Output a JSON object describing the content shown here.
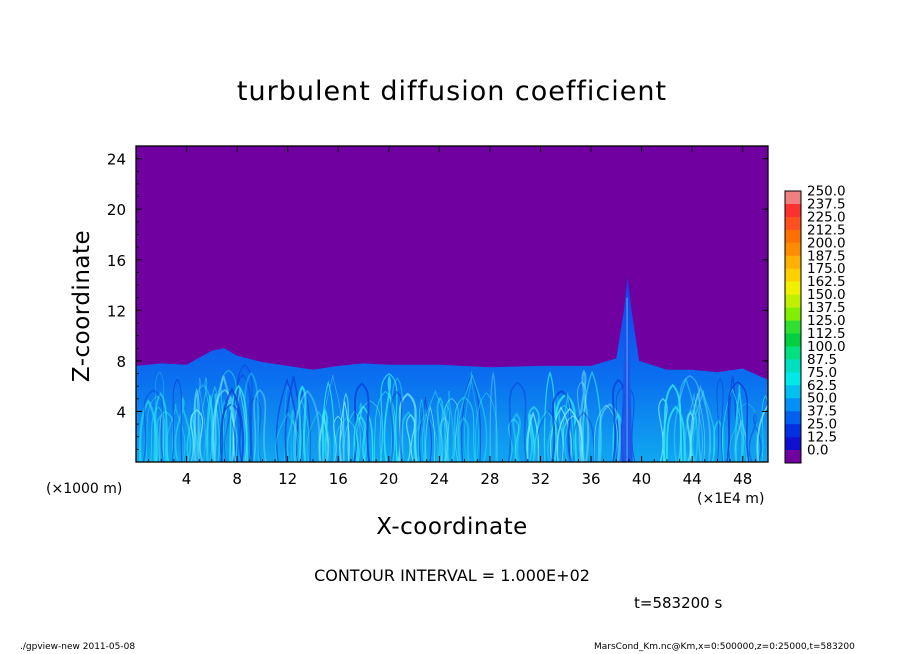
{
  "chart_data": {
    "type": "heatmap",
    "title": "turbulent diffusion coefficient",
    "xlabel": "X-coordinate",
    "ylabel": "Z-coordinate",
    "x_unit_note": "(×1000 m)",
    "x_unit_note_right": "(×1E4 m)",
    "xlim": [
      0,
      50
    ],
    "ylim": [
      0,
      25
    ],
    "xticks": [
      "4",
      "8",
      "12",
      "16",
      "20",
      "24",
      "28",
      "32",
      "36",
      "40",
      "44",
      "48"
    ],
    "xtick_values": [
      4,
      8,
      12,
      16,
      20,
      24,
      28,
      32,
      36,
      40,
      44,
      48
    ],
    "yticks": [
      "4",
      "8",
      "12",
      "16",
      "20",
      "24"
    ],
    "ytick_values": [
      4,
      8,
      12,
      16,
      20,
      24
    ],
    "colorbar": {
      "labels": [
        "250.0",
        "237.5",
        "225.0",
        "212.5",
        "200.0",
        "187.5",
        "175.0",
        "162.5",
        "150.0",
        "137.5",
        "125.0",
        "112.5",
        "100.0",
        "87.5",
        "75.0",
        "62.5",
        "50.0",
        "37.5",
        "25.0",
        "12.5",
        "0.0"
      ],
      "colors": [
        "#f08080",
        "#ff3030",
        "#ff5020",
        "#ff7000",
        "#ff8c00",
        "#ffb000",
        "#ffd000",
        "#f0f000",
        "#c0f000",
        "#80f000",
        "#30e030",
        "#00d040",
        "#00e080",
        "#00e0c0",
        "#00e8e8",
        "#00c0f0",
        "#0090f8",
        "#0060f0",
        "#0030e0",
        "#1010d0",
        "#7000a0"
      ]
    },
    "layer_top_profile": [
      [
        0,
        7.6
      ],
      [
        2,
        7.8
      ],
      [
        4,
        7.7
      ],
      [
        6,
        8.8
      ],
      [
        7,
        9.0
      ],
      [
        8,
        8.4
      ],
      [
        10,
        7.9
      ],
      [
        12,
        7.6
      ],
      [
        14,
        7.3
      ],
      [
        16,
        7.6
      ],
      [
        18,
        7.8
      ],
      [
        20,
        7.7
      ],
      [
        24,
        7.7
      ],
      [
        28,
        7.5
      ],
      [
        32,
        7.6
      ],
      [
        36,
        7.6
      ],
      [
        38,
        8.2
      ],
      [
        38.6,
        12.0
      ],
      [
        38.9,
        14.6
      ],
      [
        39.2,
        12.0
      ],
      [
        39.8,
        8.0
      ],
      [
        42,
        7.3
      ],
      [
        44,
        7.3
      ],
      [
        46,
        7.1
      ],
      [
        48,
        7.4
      ],
      [
        50,
        6.5
      ]
    ],
    "contour_interval": "CONTOUR INTERVAL = 1.000E+02",
    "time": "t=583200 s"
  },
  "footer": {
    "left": "./gpview-new  2011-05-08",
    "right": "MarsCond_Km.nc@Km,x=0:500000,z=0:25000,t=583200"
  }
}
